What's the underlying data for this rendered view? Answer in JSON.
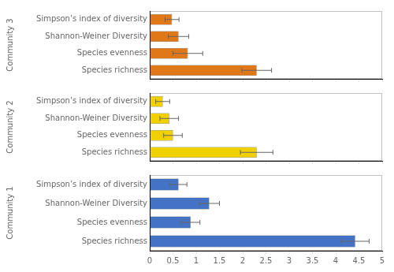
{
  "chart_data": [
    {
      "type": "bar",
      "orientation": "horizontal",
      "ylabel": "Community 3",
      "categories": [
        "Simpson’s index of diversity",
        "Shannon-Weiner Diversity",
        "Species evenness",
        "Species richness"
      ],
      "values": [
        0.48,
        0.62,
        0.82,
        2.3
      ],
      "errors": [
        0.15,
        0.22,
        0.32,
        0.32
      ],
      "color": "#E07818",
      "xlim": [
        0,
        5
      ],
      "xticks": [
        0,
        0.5,
        1,
        1.5,
        2,
        2.5,
        3,
        3.5,
        4,
        4.5,
        5
      ],
      "grid": false,
      "tick_labels": "y"
    },
    {
      "type": "bar",
      "orientation": "horizontal",
      "ylabel": "Community 2",
      "categories": [
        "Simpson’s index of diversity",
        "Shannon-Weiner Diversity",
        "Species evenness",
        "Species richness"
      ],
      "values": [
        0.28,
        0.42,
        0.5,
        2.3
      ],
      "errors": [
        0.15,
        0.2,
        0.2,
        0.35
      ],
      "color": "#F0D000",
      "xlim": [
        0,
        5
      ],
      "xticks": [
        0,
        0.5,
        1,
        1.5,
        2,
        2.5,
        3,
        3.5,
        4,
        4.5,
        5
      ],
      "grid": false,
      "tick_labels": "y"
    },
    {
      "type": "bar",
      "orientation": "horizontal",
      "ylabel": "Community 1",
      "categories": [
        "Simpson’s index of diversity",
        "Shannon-Weiner Diversity",
        "Species evenness",
        "Species richness"
      ],
      "values": [
        0.62,
        1.28,
        0.88,
        4.42
      ],
      "errors": [
        0.18,
        0.22,
        0.2,
        0.3
      ],
      "color": "#4472C4",
      "xlim": [
        0,
        5
      ],
      "xticks": [
        0,
        0.5,
        1,
        1.5,
        2,
        2.5,
        3,
        3.5,
        4,
        4.5,
        5
      ],
      "grid": false
    }
  ]
}
